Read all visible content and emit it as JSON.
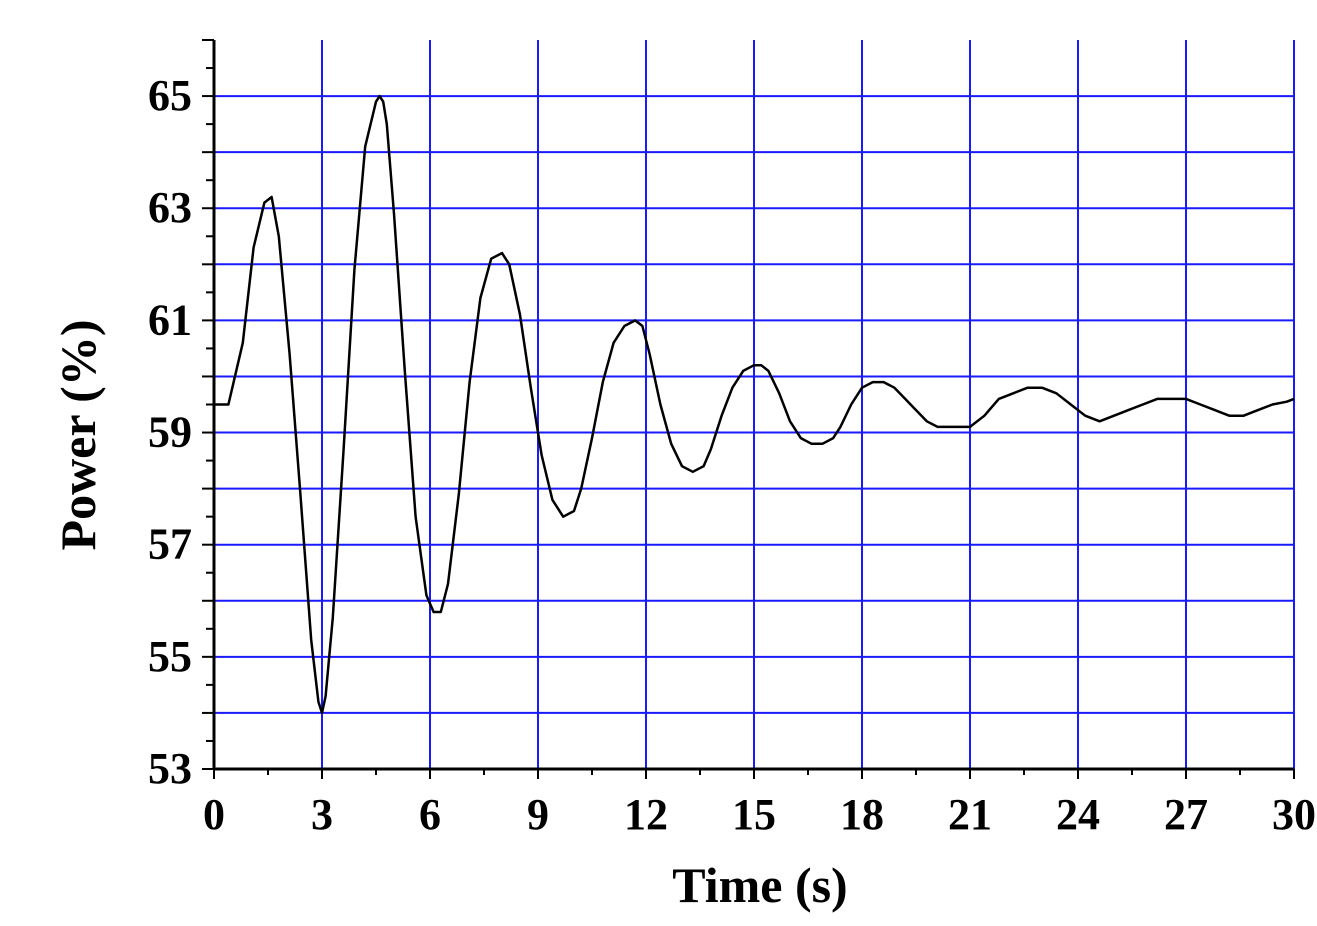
{
  "chart_data": {
    "type": "line",
    "title": "",
    "xlabel": "Time (s)",
    "ylabel": "Power (%)",
    "xlim": [
      0,
      30
    ],
    "ylim": [
      53,
      66
    ],
    "xticks": [
      0,
      3,
      6,
      9,
      12,
      15,
      18,
      21,
      24,
      27,
      30
    ],
    "yticks": [
      53,
      55,
      57,
      59,
      61,
      63,
      65
    ],
    "grid": true,
    "grid_color": "#1a1aff",
    "line_color": "#000000",
    "series": [
      {
        "x": [
          0,
          0.4,
          0.8,
          1.1,
          1.4,
          1.6,
          1.8,
          2.1,
          2.4,
          2.7,
          2.9,
          3.0,
          3.1,
          3.3,
          3.6,
          3.9,
          4.2,
          4.5,
          4.6,
          4.7,
          4.8,
          5.0,
          5.3,
          5.6,
          5.9,
          6.1,
          6.3,
          6.5,
          6.8,
          7.1,
          7.4,
          7.7,
          8.0,
          8.2,
          8.5,
          8.8,
          9.1,
          9.4,
          9.7,
          10.0,
          10.2,
          10.5,
          10.8,
          11.1,
          11.4,
          11.7,
          11.9,
          12.1,
          12.4,
          12.7,
          13.0,
          13.3,
          13.6,
          13.8,
          14.1,
          14.4,
          14.7,
          15.0,
          15.2,
          15.4,
          15.7,
          16.0,
          16.3,
          16.6,
          16.9,
          17.2,
          17.4,
          17.7,
          18.0,
          18.3,
          18.6,
          18.9,
          19.2,
          19.5,
          19.8,
          20.1,
          20.4,
          20.7,
          21.0,
          21.4,
          21.8,
          22.2,
          22.6,
          23.0,
          23.4,
          23.8,
          24.2,
          24.6,
          25.0,
          25.4,
          25.8,
          26.2,
          26.6,
          27.0,
          27.4,
          27.8,
          28.2,
          28.6,
          29.0,
          29.4,
          29.8,
          30.0
        ],
        "y": [
          59.5,
          59.5,
          60.6,
          62.3,
          63.1,
          63.2,
          62.5,
          60.4,
          57.9,
          55.3,
          54.2,
          54.0,
          54.3,
          55.7,
          58.7,
          61.9,
          64.1,
          64.9,
          65.0,
          64.9,
          64.5,
          62.9,
          60.1,
          57.5,
          56.1,
          55.8,
          55.8,
          56.3,
          57.9,
          59.9,
          61.4,
          62.1,
          62.2,
          62.0,
          61.1,
          59.8,
          58.6,
          57.8,
          57.5,
          57.6,
          58.0,
          58.9,
          59.9,
          60.6,
          60.9,
          61.0,
          60.9,
          60.4,
          59.5,
          58.8,
          58.4,
          58.3,
          58.4,
          58.7,
          59.3,
          59.8,
          60.1,
          60.2,
          60.2,
          60.1,
          59.7,
          59.2,
          58.9,
          58.8,
          58.8,
          58.9,
          59.1,
          59.5,
          59.8,
          59.9,
          59.9,
          59.8,
          59.6,
          59.4,
          59.2,
          59.1,
          59.1,
          59.1,
          59.1,
          59.3,
          59.6,
          59.7,
          59.8,
          59.8,
          59.7,
          59.5,
          59.3,
          59.2,
          59.3,
          59.4,
          59.5,
          59.6,
          59.6,
          59.6,
          59.5,
          59.4,
          59.3,
          59.3,
          59.4,
          59.5,
          59.55,
          59.6
        ]
      }
    ]
  }
}
